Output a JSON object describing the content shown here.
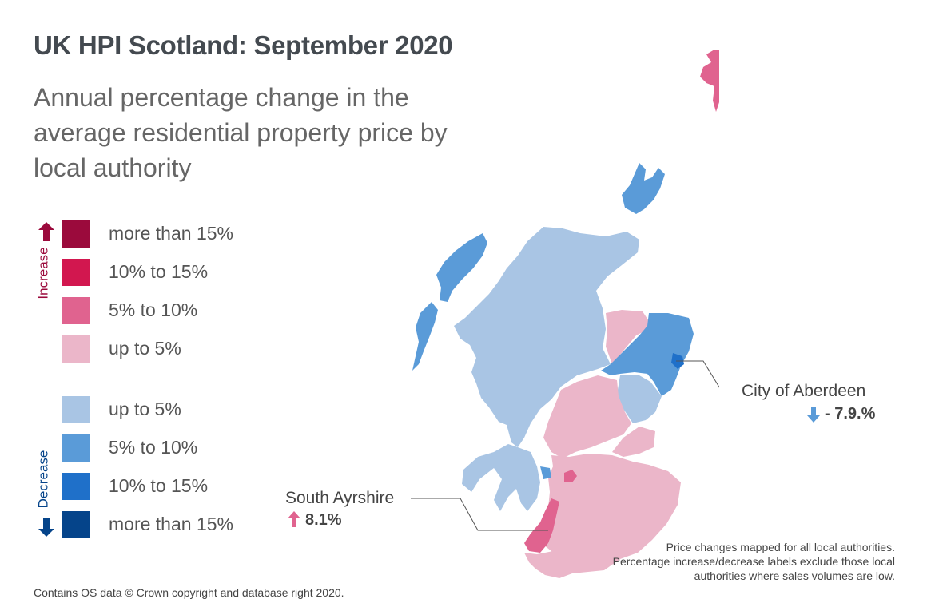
{
  "title": "UK HPI Scotland: September 2020",
  "subtitle": "Annual percentage change in the average residential property price by local authority",
  "legend": {
    "increase_label": "Increase",
    "decrease_label": "Decrease",
    "items": [
      {
        "label": "more than 15%",
        "color": "#9b0a3c",
        "direction": "increase"
      },
      {
        "label": "10% to 15%",
        "color": "#d2174f",
        "direction": "increase"
      },
      {
        "label": "5% to 10%",
        "color": "#e0638f",
        "direction": "increase"
      },
      {
        "label": "up to 5%",
        "color": "#ebb6c9",
        "direction": "increase"
      },
      {
        "label": "up to 5%",
        "color": "#a9c5e4",
        "direction": "decrease"
      },
      {
        "label": "5% to 10%",
        "color": "#5a9bd8",
        "direction": "decrease"
      },
      {
        "label": "10% to 15%",
        "color": "#1f70c9",
        "direction": "decrease"
      },
      {
        "label": "more than 15%",
        "color": "#05448a",
        "direction": "decrease"
      }
    ]
  },
  "callouts": {
    "aberdeen": {
      "name": "City of Aberdeen",
      "value": "- 7.9.%",
      "direction": "decrease",
      "arrow_color": "#5a9bd8"
    },
    "south_ayrshire": {
      "name": "South Ayrshire",
      "value": "8.1%",
      "direction": "increase",
      "arrow_color": "#e0638f"
    }
  },
  "note": "Price changes mapped for all local authorities. Percentage increase/decrease labels exclude those local authorities where sales volumes are low.",
  "footer": "Contains OS data © Crown copyright and database right 2020.",
  "map_colors": {
    "inc_up_to_5": "#ebb6c9",
    "inc_5_10": "#e0638f",
    "dec_up_to_5": "#a9c5e4",
    "dec_5_10": "#5a9bd8",
    "dec_10_15": "#1f70c9"
  }
}
